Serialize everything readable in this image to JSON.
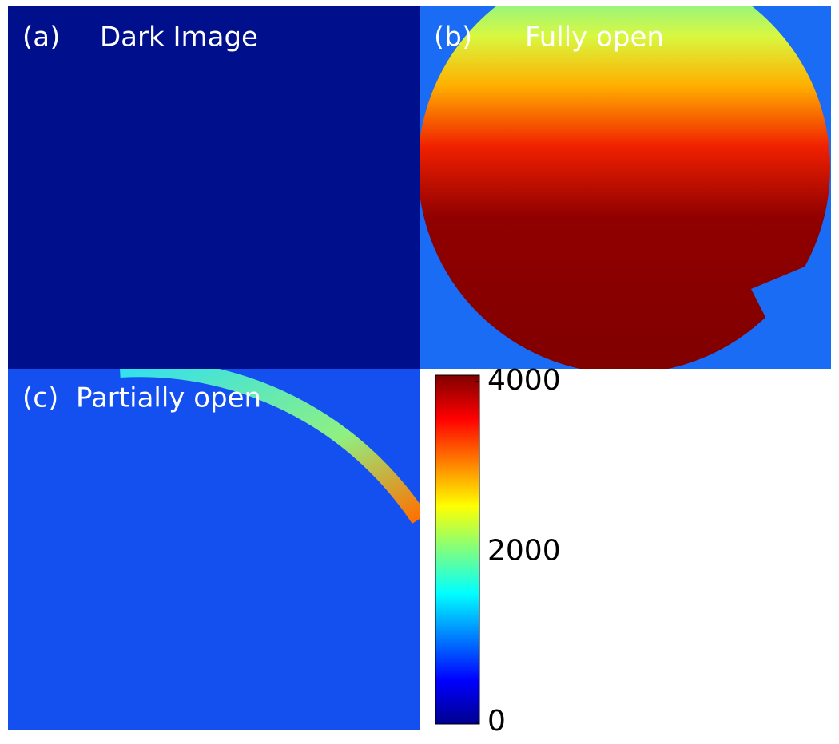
{
  "panels": [
    {
      "tag": "(a)",
      "title": "Dark Image"
    },
    {
      "tag": "(b)",
      "title": "Fully open"
    },
    {
      "tag": "(c)",
      "title": "Partially open"
    }
  ],
  "colorbar": {
    "lim": [
      0,
      4000
    ],
    "ticks": [
      0,
      2000,
      4000
    ]
  }
}
